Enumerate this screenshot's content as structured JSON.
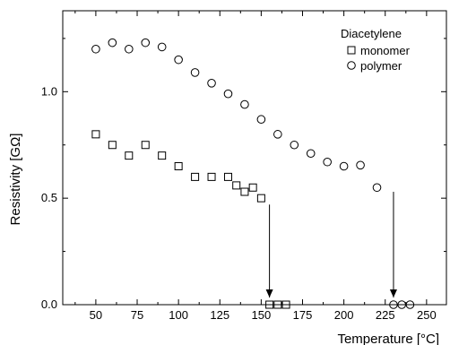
{
  "chart_data": {
    "type": "scatter",
    "title": "",
    "xlabel": "Temperature [°C]",
    "ylabel": "Resistivity [GΩ]",
    "xlim": [
      30,
      262
    ],
    "ylim": [
      0.0,
      1.38
    ],
    "x_ticks": [
      50,
      75,
      100,
      125,
      150,
      175,
      200,
      225,
      250
    ],
    "x_tick_labels": [
      "50",
      "75",
      "100",
      "125",
      "150",
      "175",
      "200",
      "225",
      "250"
    ],
    "y_ticks": [
      0.0,
      0.5,
      1.0
    ],
    "y_tick_labels": [
      "0.0",
      "0.5",
      "1.0"
    ],
    "grid": false,
    "legend": {
      "title": "Diacetylene",
      "placement": "top-right",
      "entries": [
        {
          "label": "monomer",
          "marker": "square"
        },
        {
          "label": "polymer",
          "marker": "circle"
        }
      ]
    },
    "series": [
      {
        "name": "monomer",
        "marker": "square",
        "x": [
          50,
          60,
          70,
          80,
          90,
          100,
          110,
          120,
          130,
          135,
          140,
          145,
          150,
          155,
          160,
          165
        ],
        "y": [
          0.8,
          0.75,
          0.7,
          0.75,
          0.7,
          0.65,
          0.6,
          0.6,
          0.6,
          0.56,
          0.53,
          0.55,
          0.5,
          0.0,
          0.0,
          0.0
        ]
      },
      {
        "name": "polymer",
        "marker": "circle",
        "x": [
          50,
          60,
          70,
          80,
          90,
          100,
          110,
          120,
          130,
          140,
          150,
          160,
          170,
          180,
          190,
          200,
          210,
          220,
          230,
          235,
          240
        ],
        "y": [
          1.2,
          1.23,
          1.2,
          1.23,
          1.21,
          1.15,
          1.09,
          1.04,
          0.99,
          0.94,
          0.87,
          0.8,
          0.75,
          0.71,
          0.67,
          0.65,
          0.655,
          0.55,
          0.0,
          0.0,
          0.0
        ]
      }
    ],
    "annotations": [
      {
        "type": "arrow",
        "x": 155,
        "y_from": 0.47,
        "y_to": 0.0
      },
      {
        "type": "arrow",
        "x": 230,
        "y_from": 0.53,
        "y_to": 0.0
      }
    ]
  }
}
